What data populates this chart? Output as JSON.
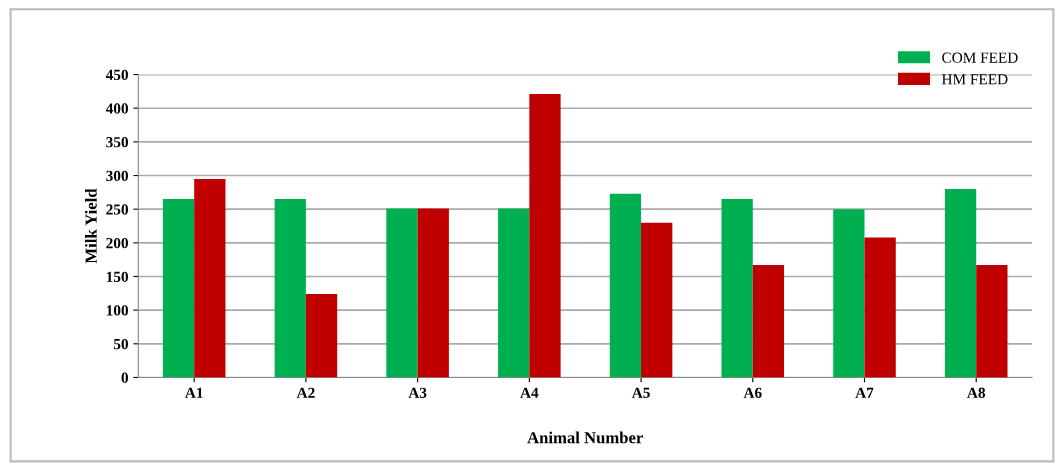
{
  "chart_data": {
    "type": "bar",
    "xlabel": "Animal Number",
    "ylabel": "Milk Yield",
    "categories": [
      "A1",
      "A2",
      "A3",
      "A4",
      "A5",
      "A6",
      "A7",
      "A8"
    ],
    "series": [
      {
        "name": "COM FEED",
        "color": "#00b050",
        "values": [
          265,
          265,
          251,
          251,
          273,
          265,
          250,
          280
        ]
      },
      {
        "name": "HM FEED",
        "color": "#c00000",
        "values": [
          295,
          124,
          251,
          421,
          230,
          167,
          208,
          167
        ]
      }
    ],
    "ylim": [
      0,
      450
    ],
    "yticks": [
      0,
      50,
      100,
      150,
      200,
      250,
      300,
      350,
      400,
      450
    ],
    "grid": "y",
    "legend": "top right"
  }
}
